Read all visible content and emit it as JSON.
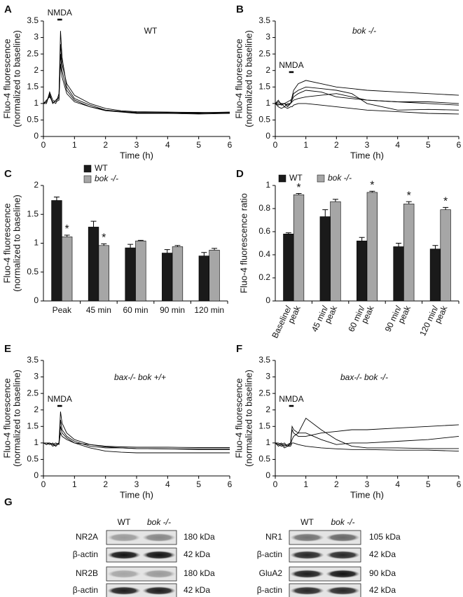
{
  "chart_data": [
    {
      "type": "line",
      "panel": "A",
      "inset": "WT",
      "ylabel": [
        "Fluo-4 fluorescence",
        "(normalized to baseline)"
      ],
      "xlabel": "Time (h)",
      "annotation": {
        "text": "NMDA",
        "span": [
          0.45,
          0.6
        ]
      },
      "xlim": [
        0,
        6
      ],
      "xticks": [
        0,
        1,
        2,
        3,
        4,
        5,
        6
      ],
      "ylim": [
        0,
        3.5
      ],
      "yticks": [
        0,
        0.5,
        1,
        1.5,
        2,
        2.5,
        3,
        3.5
      ],
      "x": [
        0,
        0.1,
        0.2,
        0.3,
        0.4,
        0.5,
        0.55,
        0.6,
        0.75,
        1,
        1.5,
        2,
        2.5,
        3,
        4,
        5,
        6
      ],
      "series": [
        {
          "color": "#000000",
          "values": [
            1,
            1.05,
            1.3,
            1,
            1.1,
            1.2,
            3.2,
            2.4,
            1.5,
            1.15,
            0.95,
            0.8,
            0.75,
            0.72,
            0.72,
            0.7,
            0.72
          ]
        },
        {
          "color": "#000000",
          "values": [
            1,
            1.1,
            1.2,
            1.05,
            1,
            1.3,
            2.8,
            2.2,
            1.6,
            1.25,
            1,
            0.85,
            0.78,
            0.75,
            0.74,
            0.73,
            0.72
          ]
        },
        {
          "color": "#000000",
          "values": [
            1,
            1,
            1.35,
            1.1,
            1.05,
            1.1,
            2.5,
            2,
            1.4,
            1.1,
            0.9,
            0.78,
            0.74,
            0.7,
            0.7,
            0.68,
            0.7
          ]
        },
        {
          "color": "#000000",
          "values": [
            1,
            1.05,
            1.25,
            1,
            1.1,
            1.15,
            2.2,
            1.8,
            1.3,
            1.05,
            0.9,
            0.8,
            0.76,
            0.73,
            0.72,
            0.72,
            0.74
          ]
        }
      ]
    },
    {
      "type": "line",
      "panel": "B",
      "inset": "bok -/-",
      "ylabel": [
        "Fluo-4 fluorescence",
        "(normalized to baseline)"
      ],
      "xlabel": "Time (h)",
      "annotation": {
        "text": "NMDA",
        "span": [
          0.45,
          0.6
        ]
      },
      "xlim": [
        0,
        6
      ],
      "xticks": [
        0,
        1,
        2,
        3,
        4,
        5,
        6
      ],
      "ylim": [
        0,
        3.5
      ],
      "yticks": [
        0,
        0.5,
        1,
        1.5,
        2,
        2.5,
        3,
        3.5
      ],
      "x": [
        0,
        0.1,
        0.2,
        0.3,
        0.4,
        0.5,
        0.55,
        0.6,
        0.75,
        1,
        1.5,
        2,
        2.5,
        3,
        4,
        5,
        6
      ],
      "series": [
        {
          "color": "#000000",
          "values": [
            1,
            1.1,
            0.95,
            1,
            0.95,
            1,
            1.2,
            1.4,
            1.6,
            1.7,
            1.6,
            1.5,
            1.45,
            1.4,
            1.35,
            1.3,
            1.25
          ]
        },
        {
          "color": "#000000",
          "values": [
            1,
            0.95,
            1,
            0.9,
            1,
            1,
            1.1,
            1.2,
            1.3,
            1.4,
            1.35,
            1.2,
            1.15,
            1.1,
            1.05,
            1.05,
            1
          ]
        },
        {
          "color": "#000000",
          "values": [
            1,
            1,
            0.95,
            1,
            0.9,
            1,
            1.05,
            1.1,
            1.15,
            1.2,
            1.25,
            1.3,
            1.2,
            1.1,
            1.05,
            1,
            0.95
          ]
        },
        {
          "color": "#000000",
          "values": [
            1,
            0.9,
            0.85,
            0.9,
            0.85,
            0.9,
            0.9,
            0.95,
            1,
            1,
            0.95,
            0.9,
            0.85,
            0.8,
            0.75,
            0.7,
            0.68
          ]
        },
        {
          "color": "#000000",
          "values": [
            1,
            1.05,
            1,
            1,
            1.05,
            1.1,
            1.15,
            1.3,
            1.4,
            1.5,
            1.45,
            1.4,
            1.3,
            1,
            0.8,
            0.82,
            0.8
          ]
        }
      ]
    },
    {
      "type": "bar",
      "panel": "C",
      "ylabel": [
        "Fluo-4 fluorescence",
        "(normalized to baseline)"
      ],
      "ylim": [
        0,
        2
      ],
      "yticks": [
        0,
        0.5,
        1,
        1.5,
        2
      ],
      "categories": [
        [
          "Peak"
        ],
        [
          "45 min"
        ],
        [
          "60 min"
        ],
        [
          "90 min"
        ],
        [
          "120 min"
        ]
      ],
      "series": [
        {
          "name": "WT",
          "color": "#1a1a1a",
          "values": [
            1.74,
            1.28,
            0.92,
            0.83,
            0.78
          ],
          "errors": [
            0.06,
            0.1,
            0.06,
            0.06,
            0.06
          ]
        },
        {
          "name": "bok -/-",
          "color": "#a6a6a6",
          "values": [
            1.11,
            0.96,
            1.04,
            0.94,
            0.88
          ],
          "errors": [
            0.03,
            0.03,
            0.01,
            0.02,
            0.03
          ],
          "markers": [
            "*",
            "*",
            null,
            null,
            null
          ]
        }
      ]
    },
    {
      "type": "bar",
      "panel": "D",
      "ylabel": [
        "Fluo-4 fluorescence ratio"
      ],
      "ylim": [
        0,
        1
      ],
      "yticks": [
        0,
        0.2,
        0.4,
        0.6,
        0.8,
        1
      ],
      "categories": [
        [
          "Baseline/",
          "peak"
        ],
        [
          "45 min/",
          "peak"
        ],
        [
          "60 min/",
          "peak"
        ],
        [
          "90 min/",
          "peak"
        ],
        [
          "120 min/",
          "peak"
        ]
      ],
      "series": [
        {
          "name": "WT",
          "color": "#1a1a1a",
          "values": [
            0.58,
            0.73,
            0.52,
            0.47,
            0.45
          ],
          "errors": [
            0.01,
            0.06,
            0.03,
            0.03,
            0.03
          ]
        },
        {
          "name": "bok -/-",
          "color": "#a6a6a6",
          "values": [
            0.92,
            0.86,
            0.94,
            0.84,
            0.79
          ],
          "errors": [
            0.01,
            0.02,
            0.01,
            0.02,
            0.02
          ],
          "markers": [
            "*",
            null,
            "*",
            "*",
            "*"
          ]
        }
      ]
    },
    {
      "type": "line",
      "panel": "E",
      "inset": "bax-/- bok +/+",
      "ylabel": [
        "Fluo-4 fluorescence",
        "(normalized to baseline)"
      ],
      "xlabel": "Time (h)",
      "annotation": {
        "text": "NMDA",
        "span": [
          0.45,
          0.6
        ]
      },
      "xlim": [
        0,
        6
      ],
      "xticks": [
        0,
        1,
        2,
        3,
        4,
        5,
        6
      ],
      "ylim": [
        0,
        3.5
      ],
      "yticks": [
        0,
        0.5,
        1,
        1.5,
        2,
        2.5,
        3,
        3.5
      ],
      "x": [
        0,
        0.1,
        0.2,
        0.3,
        0.4,
        0.5,
        0.55,
        0.6,
        0.75,
        1,
        1.5,
        2,
        2.5,
        3,
        4,
        5,
        6
      ],
      "series": [
        {
          "color": "#000000",
          "values": [
            1,
            0.95,
            1,
            0.9,
            0.95,
            1,
            1.95,
            1.6,
            1.3,
            1.1,
            0.95,
            0.88,
            0.85,
            0.83,
            0.82,
            0.8,
            0.8
          ]
        },
        {
          "color": "#000000",
          "values": [
            1,
            1,
            0.95,
            1,
            0.9,
            1,
            1.7,
            1.4,
            1.2,
            1.05,
            0.9,
            0.85,
            0.85,
            0.83,
            0.82,
            0.82,
            0.82
          ]
        },
        {
          "color": "#000000",
          "values": [
            1,
            0.95,
            1,
            0.95,
            1,
            0.95,
            1.5,
            1.3,
            1.15,
            1,
            0.85,
            0.75,
            0.72,
            0.7,
            0.7,
            0.7,
            0.7
          ]
        },
        {
          "color": "#000000",
          "values": [
            1,
            1,
            1,
            0.95,
            0.9,
            1,
            1.3,
            1.2,
            1.1,
            1,
            0.95,
            0.9,
            0.88,
            0.87,
            0.87,
            0.86,
            0.86
          ]
        }
      ]
    },
    {
      "type": "line",
      "panel": "F",
      "inset": "bax-/- bok -/-",
      "ylabel": [
        "Fluo-4 fluorescence",
        "(normalized to baseline)"
      ],
      "xlabel": "Time (h)",
      "annotation": {
        "text": "NMDA",
        "span": [
          0.45,
          0.6
        ]
      },
      "xlim": [
        0,
        6
      ],
      "xticks": [
        0,
        1,
        2,
        3,
        4,
        5,
        6
      ],
      "ylim": [
        0,
        3.5
      ],
      "yticks": [
        0,
        0.5,
        1,
        1.5,
        2,
        2.5,
        3,
        3.5
      ],
      "x": [
        0,
        0.1,
        0.2,
        0.3,
        0.4,
        0.5,
        0.55,
        0.6,
        0.75,
        1,
        1.5,
        2,
        2.5,
        3,
        4,
        5,
        6
      ],
      "series": [
        {
          "color": "#000000",
          "values": [
            1,
            0.95,
            1,
            0.9,
            0.95,
            1,
            1.5,
            1.4,
            1.3,
            1.75,
            1.4,
            1.1,
            0.9,
            0.85,
            0.85,
            0.83,
            0.83
          ]
        },
        {
          "color": "#000000",
          "values": [
            1,
            1,
            0.95,
            1,
            0.9,
            1,
            1.4,
            1.3,
            1.2,
            1.2,
            1.3,
            1.35,
            1.4,
            1.4,
            1.45,
            1.5,
            1.55
          ]
        },
        {
          "color": "#000000",
          "values": [
            1,
            0.9,
            0.95,
            0.85,
            0.9,
            0.95,
            1.1,
            1.2,
            1.3,
            1.3,
            1.1,
            0.95,
            1,
            1,
            1.05,
            1.1,
            1.2
          ]
        },
        {
          "color": "#000000",
          "values": [
            1,
            0.95,
            0.9,
            0.95,
            0.9,
            0.9,
            1,
            1,
            0.95,
            0.9,
            0.85,
            0.82,
            0.8,
            0.8,
            0.78,
            0.78,
            0.75
          ]
        }
      ]
    }
  ],
  "blots": {
    "panel": "G",
    "left": {
      "columns": [
        "WT",
        "bok -/-"
      ],
      "rows": [
        {
          "label": "NR2A",
          "size": "180 kDa"
        },
        {
          "label": "β-actin",
          "size": "42 kDa"
        },
        {
          "label": "NR2B",
          "size": "180 kDa"
        },
        {
          "label": "β-actin",
          "size": "42 kDa"
        }
      ]
    },
    "right": {
      "columns": [
        "WT",
        "bok -/-"
      ],
      "rows": [
        {
          "label": "NR1",
          "size": "105 kDa"
        },
        {
          "label": "β-actin",
          "size": "42 kDa"
        },
        {
          "label": "GluA2",
          "size": "90 kDa"
        },
        {
          "label": "β-actin",
          "size": "42 kDa"
        }
      ]
    }
  }
}
